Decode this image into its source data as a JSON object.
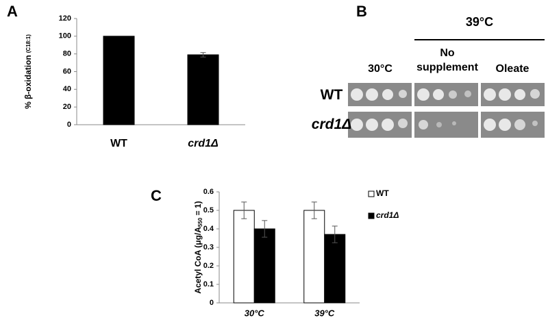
{
  "chart_data": [
    {
      "type": "bar",
      "panel": "A",
      "ylabel": "% β-oxidation",
      "ylabel_note": "(C18:1)",
      "categories": [
        "WT",
        "crd1Δ"
      ],
      "values": [
        100,
        79
      ],
      "errors": [
        null,
        2.5
      ],
      "color": "#000000",
      "ylim": [
        0,
        120
      ],
      "yticks": [
        0,
        20,
        40,
        60,
        80,
        100,
        120
      ],
      "grid": false
    },
    {
      "type": "bar",
      "panel": "C",
      "ylabel": "Acetyl CoA (μg/A",
      "ylabel_sub": "550",
      "ylabel_end": " = 1)",
      "categories": [
        "30°C",
        "39°C"
      ],
      "series": [
        {
          "name": "WT",
          "color": "#ffffff",
          "values": [
            0.5,
            0.5
          ],
          "errors": [
            0.045,
            0.045
          ]
        },
        {
          "name": "crd1Δ",
          "color": "#000000",
          "values": [
            0.4,
            0.37
          ],
          "errors": [
            0.045,
            0.045
          ]
        }
      ],
      "ylim": [
        0,
        0.6
      ],
      "yticks": [
        0,
        0.1,
        0.2,
        0.3,
        0.4,
        0.5,
        0.6
      ],
      "grid": false,
      "legend": "right"
    }
  ],
  "spot_assay": {
    "panel": "B",
    "temperature": "39°C",
    "conditions": [
      "30°C",
      "No\nsupplement",
      "Oleate"
    ],
    "strains": [
      "WT",
      "crd1Δ"
    ]
  }
}
